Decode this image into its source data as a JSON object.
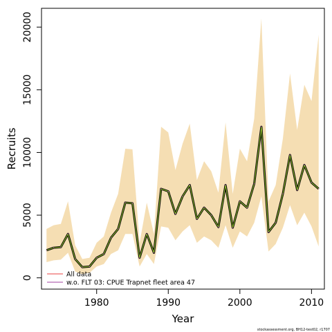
{
  "chart_data": {
    "type": "line",
    "xlabel": "Year",
    "ylabel": "Recruits",
    "xlim": [
      1972.3,
      2011.8
    ],
    "ylim": [
      -900,
      21500
    ],
    "x_ticks": [
      1980,
      1990,
      2000,
      2010
    ],
    "y_ticks": [
      0,
      5000,
      10000,
      15000,
      20000
    ],
    "x": [
      1973,
      1974,
      1975,
      1976,
      1977,
      1978,
      1979,
      1980,
      1981,
      1982,
      1983,
      1984,
      1985,
      1986,
      1987,
      1988,
      1989,
      1990,
      1991,
      1992,
      1993,
      1994,
      1995,
      1996,
      1997,
      1998,
      1999,
      2000,
      2001,
      2002,
      2003,
      2004,
      2005,
      2006,
      2007,
      2008,
      2009,
      2010,
      2011
    ],
    "series": [
      {
        "name": "All data",
        "color": "#f08080",
        "values": [
          2200,
          2400,
          2450,
          3500,
          1500,
          850,
          900,
          1600,
          1900,
          3200,
          3900,
          6000,
          5950,
          1600,
          3500,
          2000,
          7100,
          6900,
          5100,
          6500,
          7400,
          4700,
          5600,
          5000,
          4050,
          7400,
          4000,
          6100,
          5600,
          7500,
          12050,
          3650,
          4400,
          6700,
          9800,
          7000,
          9000,
          7600,
          7100
        ]
      },
      {
        "name": "w.o. FLT 03: CPUE Trapnet fleet area 47",
        "color": "#c080c0",
        "values": [
          2200,
          2400,
          2450,
          3500,
          1500,
          850,
          900,
          1600,
          1900,
          3200,
          3900,
          6000,
          5950,
          1600,
          3500,
          2000,
          7100,
          6900,
          5100,
          6500,
          7400,
          4700,
          5600,
          5000,
          4050,
          7400,
          4000,
          6100,
          5600,
          7500,
          12050,
          3650,
          4400,
          6700,
          9800,
          7000,
          9000,
          7600,
          7100
        ]
      }
    ],
    "band": {
      "color": "#f5deb3",
      "lower": [
        1250,
        1400,
        1450,
        2000,
        500,
        300,
        400,
        900,
        1100,
        1900,
        2200,
        3500,
        3500,
        900,
        1900,
        1100,
        4100,
        4000,
        3000,
        3700,
        4200,
        2800,
        3300,
        3000,
        2400,
        4200,
        2400,
        3700,
        3300,
        4400,
        6500,
        2100,
        2700,
        4000,
        5800,
        4200,
        5200,
        4100,
        2500
      ],
      "upper": [
        3900,
        4200,
        4300,
        6100,
        2600,
        1500,
        1600,
        2800,
        3300,
        5200,
        6700,
        10300,
        10250,
        2800,
        6000,
        3500,
        12050,
        11600,
        8600,
        10700,
        12300,
        7800,
        9300,
        8500,
        6800,
        12400,
        6700,
        10300,
        9300,
        12700,
        20700,
        6100,
        7400,
        11100,
        16300,
        11800,
        15400,
        14100,
        19400
      ]
    },
    "legend": "bottom-left",
    "grid": false,
    "watermark": "stockassessment.org, BH12-test02, r1707"
  }
}
